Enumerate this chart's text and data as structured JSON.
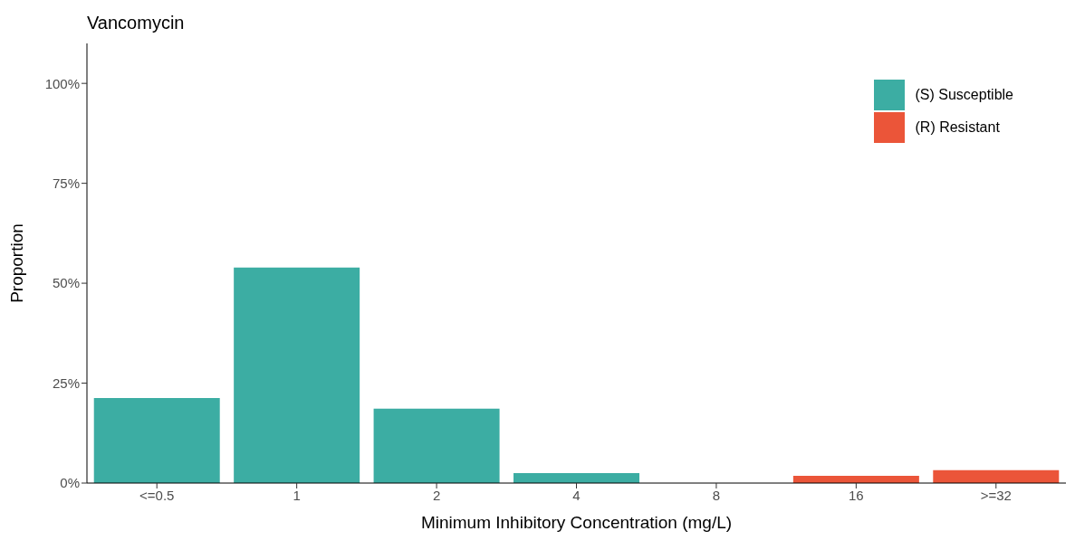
{
  "chart_data": {
    "type": "bar",
    "title": "Vancomycin",
    "xlabel": "Minimum Inhibitory Concentration (mg/L)",
    "ylabel": "Proportion",
    "categories": [
      "<=0.5",
      "1",
      "2",
      "4",
      "8",
      "16",
      ">=32"
    ],
    "series": [
      {
        "name": "(S) Susceptible",
        "color": "#3cada3",
        "values": [
          21.3,
          53.9,
          18.6,
          2.5,
          null,
          null,
          null
        ]
      },
      {
        "name": "(R) Resistant",
        "color": "#eb5539",
        "values": [
          null,
          null,
          null,
          null,
          null,
          1.8,
          3.2
        ]
      }
    ],
    "stacked": true,
    "ylim": [
      0,
      110
    ],
    "yticks": [
      {
        "value": 0,
        "label": "0%"
      },
      {
        "value": 25,
        "label": "25%"
      },
      {
        "value": 50,
        "label": "50%"
      },
      {
        "value": 75,
        "label": "75%"
      },
      {
        "value": 100,
        "label": "100%"
      }
    ],
    "grid": false,
    "legend": "top right"
  }
}
